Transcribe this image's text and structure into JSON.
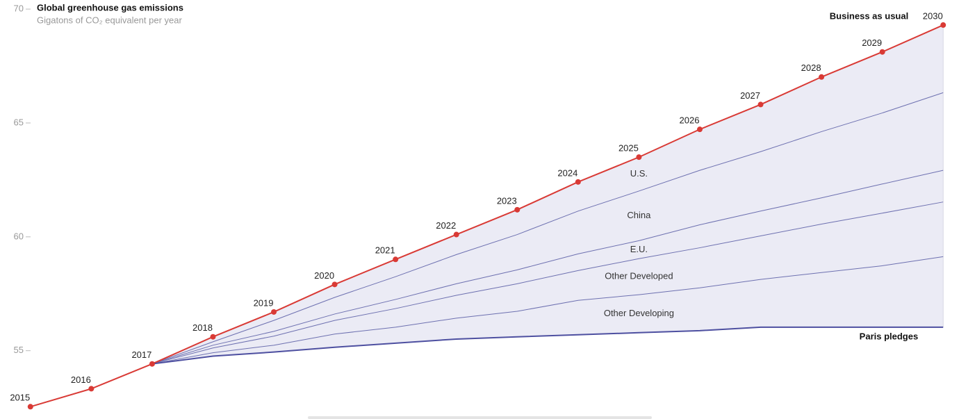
{
  "chart_data": {
    "type": "line",
    "title": "Global greenhouse gas emissions",
    "subtitle": "Gigatons of CO₂ equivalent per year",
    "x": [
      2015,
      2016,
      2017,
      2018,
      2019,
      2020,
      2021,
      2022,
      2023,
      2024,
      2025,
      2026,
      2027,
      2028,
      2029,
      2030
    ],
    "xlim": [
      2014.5,
      2030.26
    ],
    "ylim": [
      52,
      70.4
    ],
    "yticks": [
      55,
      60,
      65,
      70
    ],
    "series": [
      {
        "name": "Business as usual",
        "color": "#d93a35",
        "values": [
          52.54,
          53.33,
          54.42,
          55.61,
          56.7,
          57.91,
          59.01,
          60.1,
          61.19,
          62.41,
          63.5,
          64.72,
          65.81,
          67.02,
          68.12,
          69.3
        ]
      },
      {
        "name": "Paris pledges",
        "color": "#4d4fa0",
        "values": [
          null,
          null,
          54.42,
          54.76,
          54.94,
          55.15,
          55.33,
          55.51,
          55.61,
          55.7,
          55.79,
          55.88,
          56.03,
          56.03,
          56.03,
          56.03
        ]
      }
    ],
    "boundaries": [
      {
        "color": "#6d70b0",
        "values": [
          null,
          null,
          54.42,
          55.39,
          56.33,
          57.34,
          58.25,
          59.22,
          60.1,
          61.13,
          62.01,
          62.92,
          63.74,
          64.62,
          65.44,
          66.33
        ]
      },
      {
        "color": "#6d70b0",
        "values": [
          null,
          null,
          54.42,
          55.24,
          55.85,
          56.61,
          57.25,
          57.94,
          58.55,
          59.25,
          59.83,
          60.53,
          61.13,
          61.71,
          62.32,
          62.92
        ]
      },
      {
        "color": "#6d70b0",
        "values": [
          null,
          null,
          54.42,
          55.12,
          55.64,
          56.33,
          56.85,
          57.43,
          57.94,
          58.52,
          59.04,
          59.52,
          60.04,
          60.56,
          61.04,
          61.53
        ]
      },
      {
        "color": "#6d70b0",
        "values": [
          null,
          null,
          54.42,
          54.91,
          55.24,
          55.73,
          56.03,
          56.43,
          56.73,
          57.21,
          57.46,
          57.76,
          58.13,
          58.43,
          58.73,
          59.13
        ]
      }
    ],
    "band_labels": [
      "U.S.",
      "China",
      "E.U.",
      "Other Developed",
      "Other Developing"
    ],
    "fill_color": "#ebebf5"
  }
}
